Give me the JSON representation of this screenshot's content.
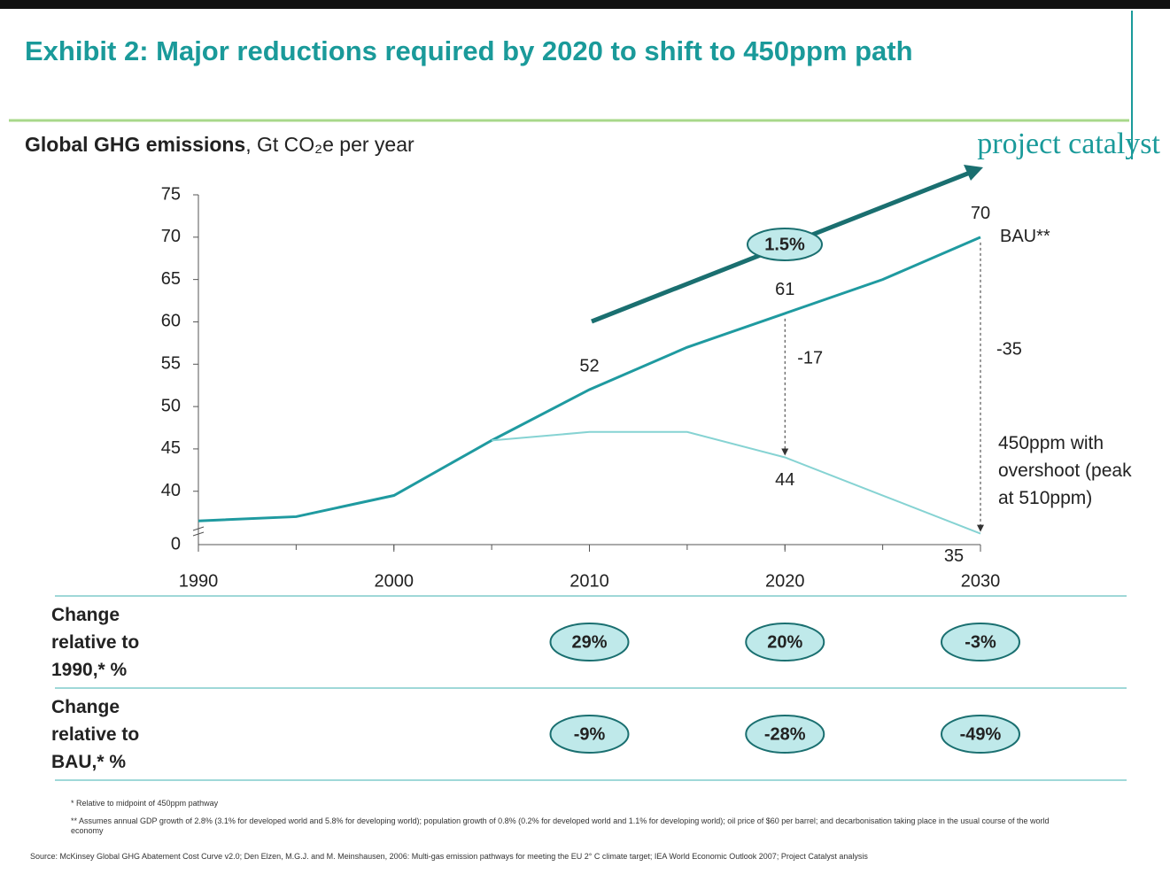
{
  "chart_data": {
    "type": "line",
    "title": "Exhibit 2: Major reductions required by 2020 to shift to 450ppm path",
    "subtitle_bold": "Global GHG emissions",
    "subtitle": ", Gt CO₂e per year",
    "logo": "project catalyst",
    "x": [
      1990,
      1995,
      2000,
      2005,
      2010,
      2015,
      2020,
      2025,
      2030
    ],
    "xlim": [
      1990,
      2030
    ],
    "xticks": [
      1990,
      2000,
      2010,
      2020,
      2030
    ],
    "ylim": [
      33.7,
      75
    ],
    "yticks": [
      40,
      45,
      50,
      55,
      60,
      65,
      70,
      75
    ],
    "axis_break_label": "0",
    "series": [
      {
        "name": "BAU**",
        "color": "#1f9aa0",
        "values": [
          36.5,
          37,
          39.5,
          46,
          52,
          57,
          61,
          65,
          70
        ],
        "value_labels": [
          null,
          null,
          null,
          null,
          "52",
          null,
          "61",
          null,
          "70"
        ]
      },
      {
        "name": "450ppm with overshoot (peak at 510ppm)",
        "color": "#86d3d3",
        "values": [
          null,
          null,
          null,
          46,
          47,
          47,
          44,
          39.5,
          35
        ],
        "value_labels": [
          null,
          null,
          null,
          null,
          null,
          null,
          "44",
          null,
          "35"
        ]
      }
    ],
    "growth_label": "1.5%",
    "delta_labels": {
      "2020": "-17",
      "2030": "-35"
    },
    "table": {
      "columns": [
        2010,
        2020,
        2030
      ],
      "rows": [
        {
          "label": "Change relative to 1990,* %",
          "values": [
            "29%",
            "20%",
            "-3%"
          ]
        },
        {
          "label": "Change relative to BAU,* %",
          "values": [
            "-9%",
            "-28%",
            "-49%"
          ]
        }
      ]
    },
    "footnotes": [
      "* Relative to midpoint of 450ppm pathway",
      "** Assumes annual GDP growth of 2.8% (3.1% for developed world and 5.8% for developing world); population growth of 0.8% (0.2% for developed world and 1.1% for developing world); oil price of $60 per barrel; and decarbonisation taking place in the usual course of the world economy",
      "Source: McKinsey Global GHG Abatement Cost Curve v2.0; Den Elzen, M.G.J. and M. Meinshausen, 2006: Multi-gas emission pathways for meeting the EU 2° C climate target; IEA World Economic Outlook 2007; Project Catalyst analysis"
    ]
  }
}
